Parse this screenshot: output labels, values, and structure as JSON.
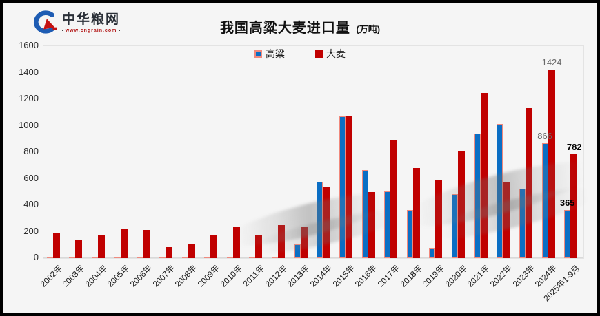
{
  "logo": {
    "name": "中华粮网",
    "url": "www.cngrain.com"
  },
  "title": {
    "text": "我国高粱大麦进口量",
    "unit": "(万吨)"
  },
  "colors": {
    "sorghum_fill": "#0a6ec4",
    "sorghum_border": "#f0897d",
    "barley_fill": "#c00000",
    "background": "#f5f5f5",
    "frame_border": "#000000",
    "label_gray": "#6a6a6a",
    "label_black": "#000000"
  },
  "chart_data": {
    "type": "bar",
    "title": "我国高粱大麦进口量 (万吨)",
    "xlabel": "",
    "ylabel": "",
    "ylim": [
      0,
      1600
    ],
    "ytick_step": 200,
    "grid": false,
    "legend_position": "top-center",
    "categories": [
      "2002年",
      "2003年",
      "2004年",
      "2005年",
      "2006年",
      "2007年",
      "2008年",
      "2009年",
      "2010年",
      "2011年",
      "2012年",
      "2013年",
      "2014年",
      "2015年",
      "2016年",
      "2017年",
      "2018年",
      "2019年",
      "2020年",
      "2021年",
      "2022年",
      "2023年",
      "2024年",
      "2025年1-9月"
    ],
    "series": [
      {
        "name": "高粱",
        "color": "#0a6ec4",
        "border": "#f0897d",
        "values": [
          2,
          2,
          3,
          2,
          2,
          2,
          2,
          3,
          5,
          3,
          8,
          105,
          578,
          1070,
          665,
          506,
          365,
          80,
          481,
          942,
          1014,
          525,
          866,
          365
        ]
      },
      {
        "name": "大麦",
        "color": "#c00000",
        "values": [
          185,
          135,
          170,
          218,
          212,
          85,
          105,
          173,
          232,
          177,
          247,
          234,
          541,
          1073,
          500,
          886,
          682,
          586,
          808,
          1248,
          575,
          1132,
          1424,
          782
        ]
      }
    ],
    "value_labels": [
      {
        "series": 0,
        "index": 22,
        "text": "866",
        "style": "gray"
      },
      {
        "series": 1,
        "index": 22,
        "text": "1424",
        "style": "gray"
      },
      {
        "series": 0,
        "index": 23,
        "text": "365",
        "style": "black-bold"
      },
      {
        "series": 1,
        "index": 23,
        "text": "782",
        "style": "black-bold"
      }
    ]
  }
}
